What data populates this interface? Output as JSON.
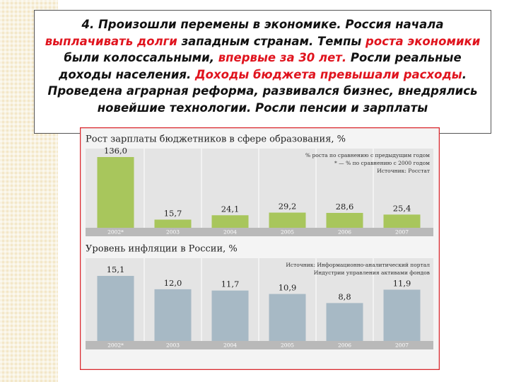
{
  "text": {
    "highlight_color": "#e0141e",
    "segments": [
      {
        "text": "4. Произошли перемены в экономике. Россия начала ",
        "highlight": false
      },
      {
        "text": "выплачивать долги",
        "highlight": true
      },
      {
        "text": " западным странам. Темпы ",
        "highlight": false
      },
      {
        "text": "роста экономики",
        "highlight": true
      },
      {
        "text": " были колоссальными, ",
        "highlight": false
      },
      {
        "text": "впервые за 30 лет.",
        "highlight": true
      },
      {
        "text": " Росли реальные доходы населения. ",
        "highlight": false
      },
      {
        "text": "Доходы бюджета превышали расходы",
        "highlight": true
      },
      {
        "text": ". Проведена аграрная реформа, развивался бизнес, внедрялись новейшие технологии. Росли пенсии и зарплаты",
        "highlight": false
      }
    ]
  },
  "chart_data": [
    {
      "type": "bar",
      "title": "Рост зарплаты бюджетников в сфере образования, %",
      "categories": [
        "2002*",
        "2003",
        "2004",
        "2005",
        "2006",
        "2007"
      ],
      "values": [
        136.0,
        15.7,
        24.1,
        29.2,
        28.6,
        25.4
      ],
      "value_labels": [
        "136,0",
        "15,7",
        "24,1",
        "29,2",
        "28,6",
        "25,4"
      ],
      "color": "#a8c65c",
      "notes": [
        "% роста по сравнению с предыдущим годом",
        "* — % по сравнению с 2000 годом",
        "Источник: Росстат"
      ]
    },
    {
      "type": "bar",
      "title": "Уровень инфляции в России, %",
      "categories": [
        "2002*",
        "2003",
        "2004",
        "2005",
        "2006",
        "2007"
      ],
      "values": [
        15.1,
        12.0,
        11.7,
        10.9,
        8.8,
        11.9
      ],
      "value_labels": [
        "15,1",
        "12,0",
        "11,7",
        "10,9",
        "8,8",
        "11,9"
      ],
      "color": "#a7b9c5",
      "notes": [
        "Источник: Информационно-аналитический портал",
        "Индустрии управления активами фондов"
      ]
    }
  ]
}
